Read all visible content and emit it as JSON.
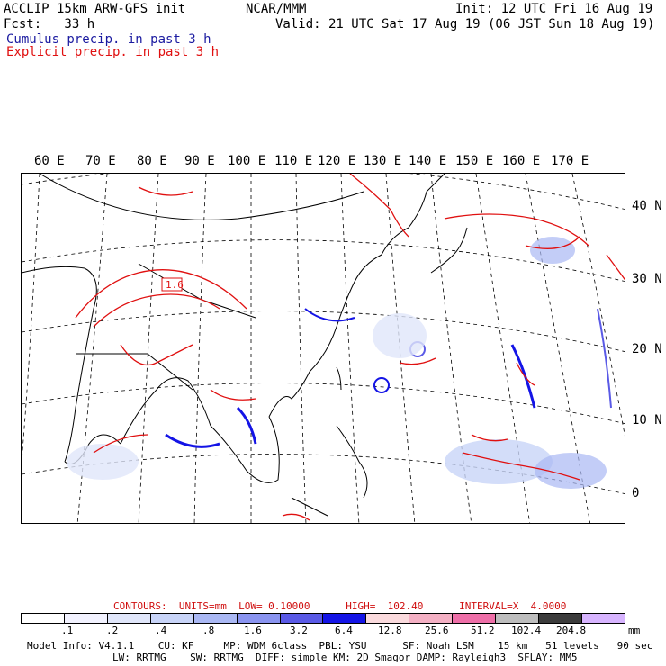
{
  "header": {
    "line1_left": "ACCLIP 15km ARW-GFS init",
    "line1_center": "NCAR/MMM",
    "line1_right": "Init: 12 UTC Fri 16 Aug 19",
    "line2_left": "Fcst:   33 h",
    "line2_right": "Valid: 21 UTC Sat 17 Aug 19 (06 JST Sun 18 Aug 19)",
    "line3": "Cumulus precip. in past 3 h",
    "line4": "Explicit precip. in past 3 h",
    "line3_color": "#1a1aa0",
    "line4_color": "#e01010"
  },
  "map": {
    "lon_labels": [
      "60 E",
      "70 E",
      "80 E",
      "90 E",
      "100 E",
      "110 E",
      "120 E",
      "130 E",
      "140 E",
      "150 E",
      "160 E",
      "170 E"
    ],
    "lat_labels": [
      "40 N",
      "30 N",
      "20 N",
      "10 N",
      "0"
    ],
    "contour_label": "1.6"
  },
  "legend": {
    "contours_text": "CONTOURS:  UNITS=mm  LOW= 0.10000      HIGH=  102.40      INTERVAL=X  4.0000",
    "contours_color": "#d01010",
    "colors": [
      "#ffffff",
      "#f2f2ff",
      "#e0e6fa",
      "#c8d4f8",
      "#aab8f4",
      "#8a94f0",
      "#5a5ae6",
      "#1414e6",
      "#fadadd",
      "#f4b0c4",
      "#ee6fa8",
      "#bdbdbd",
      "#3c3c3c",
      "#d7b4ff"
    ],
    "ticks": [
      ".1",
      ".2",
      ".4",
      ".8",
      "1.6",
      "3.2",
      "6.4",
      "12.8",
      "25.6",
      "51.2",
      "102.4",
      "204.8"
    ],
    "units": "mm"
  },
  "footer": {
    "line1": "Model Info: V4.1.1    CU: KF     MP: WDM 6class  PBL: YSU      SF: Noah LSM    15 km   51 levels   90 sec",
    "line2": "LW: RRTMG    SW: RRTMG  DIFF: simple KM: 2D Smagor DAMP: Rayleigh3  SFLAY: MM5"
  }
}
